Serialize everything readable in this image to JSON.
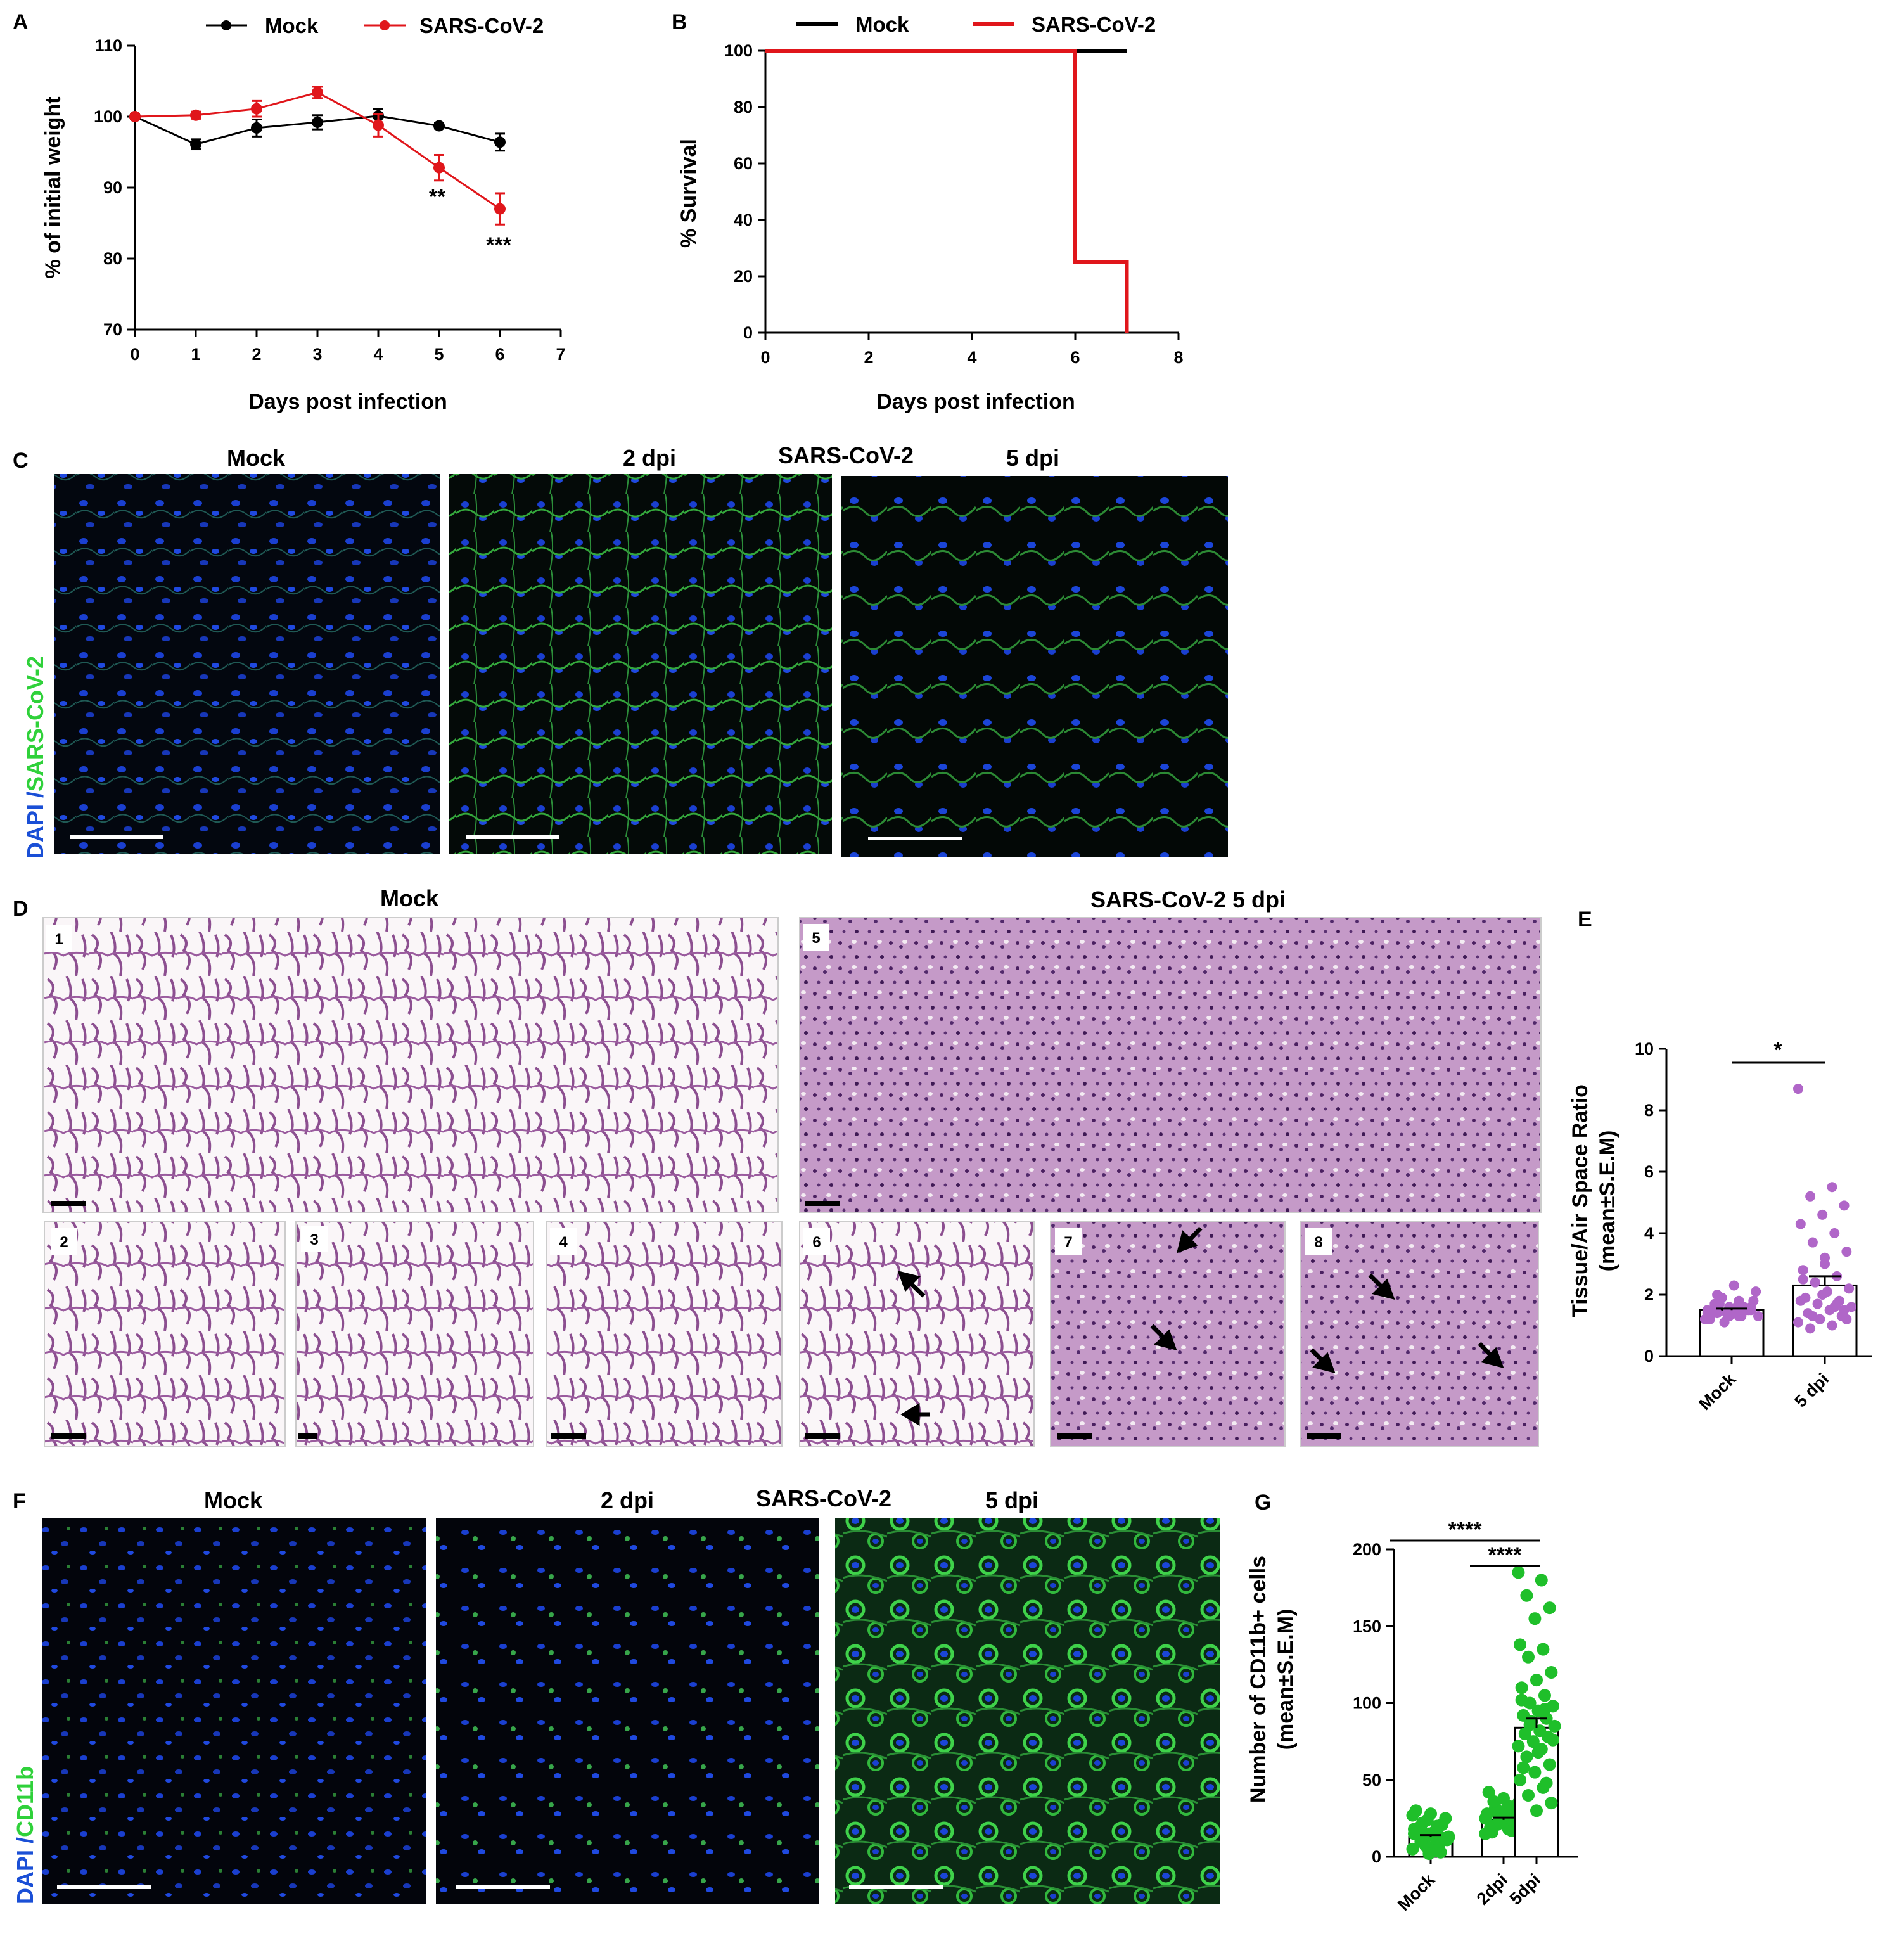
{
  "panel_labels": {
    "A": "A",
    "B": "B",
    "C": "C",
    "D": "D",
    "E": "E",
    "F": "F",
    "G": "G"
  },
  "colors": {
    "mock": "#000000",
    "sars": "#e0161b",
    "purple": "#b066c8",
    "green": "#1fbf2a",
    "dapi": "#1a4fd6",
    "viral": "#2fd13a",
    "he_bg": "#f2e6ef",
    "he_tissue": "#9a5b9e"
  },
  "panel_A": {
    "legend_mock": "Mock",
    "legend_sars": "SARS-CoV-2",
    "xlabel": "Days post infection",
    "ylabel": "% of initial weight",
    "xticks": [
      "0",
      "1",
      "2",
      "3",
      "4",
      "5",
      "6",
      "7"
    ],
    "yticks": [
      "70",
      "80",
      "90",
      "100",
      "110"
    ],
    "sig_5": "**",
    "sig_6": "***"
  },
  "panel_B": {
    "legend_mock": "Mock",
    "legend_sars": "SARS-CoV-2",
    "xlabel": "Days post infection",
    "ylabel": "% Survival",
    "xticks": [
      "0",
      "2",
      "4",
      "6",
      "8"
    ],
    "yticks": [
      "0",
      "20",
      "40",
      "60",
      "80",
      "100"
    ]
  },
  "panel_C": {
    "title_mock": "Mock",
    "title_2dpi": "2 dpi",
    "title_sars": "SARS-CoV-2",
    "title_5dpi": "5 dpi",
    "ylabel_dapi": "DAPI",
    "ylabel_sep": " /",
    "ylabel_stain": "SARS-CoV-2"
  },
  "panel_D": {
    "title_mock": "Mock",
    "title_sars": "SARS-CoV-2   5 dpi",
    "subpanels": [
      "1",
      "2",
      "3",
      "4",
      "5",
      "6",
      "7",
      "8"
    ]
  },
  "panel_E": {
    "ylabel1": "Tissue/Air Space Ratio",
    "ylabel2": "(mean±S.E.M)",
    "yticks": [
      "0",
      "2",
      "4",
      "6",
      "8",
      "10"
    ],
    "categories": [
      "Mock",
      "5 dpi"
    ],
    "sig": "*"
  },
  "panel_F": {
    "title_mock": "Mock",
    "title_2dpi": "2 dpi",
    "title_sars": "SARS-CoV-2",
    "title_5dpi": "5 dpi",
    "ylabel_dapi": "DAPI",
    "ylabel_sep": " /",
    "ylabel_stain": "CD11b"
  },
  "panel_G": {
    "ylabel1": "Number of CD11b+ cells",
    "ylabel2": "(mean±S.E.M)",
    "yticks": [
      "0",
      "50",
      "100",
      "150",
      "200"
    ],
    "categories": [
      "Mock",
      "2dpi",
      "5dpi"
    ],
    "sig1": "****",
    "sig2": "****"
  },
  "chart_data": [
    {
      "type": "line",
      "panel": "A",
      "x": [
        0,
        1,
        2,
        3,
        4,
        5,
        6
      ],
      "series": [
        {
          "name": "Mock",
          "values": [
            100,
            96.1,
            98.4,
            99.2,
            100.1,
            98.7,
            96.4
          ],
          "error": [
            0.3,
            0.7,
            1.2,
            1.0,
            1.0,
            0.4,
            1.2
          ]
        },
        {
          "name": "SARS-CoV-2",
          "values": [
            100,
            100.2,
            101.1,
            103.4,
            98.8,
            92.8,
            87.0
          ],
          "error": [
            0.3,
            0.5,
            1.1,
            0.8,
            1.6,
            1.8,
            2.2
          ]
        }
      ],
      "xlim": [
        0,
        7
      ],
      "ylim": [
        70,
        110
      ]
    },
    {
      "type": "line",
      "panel": "B",
      "step": true,
      "series": [
        {
          "name": "Mock",
          "x": [
            0,
            7
          ],
          "values": [
            100,
            100
          ]
        },
        {
          "name": "SARS-CoV-2",
          "x": [
            0,
            6,
            6,
            7,
            7
          ],
          "values": [
            100,
            100,
            25,
            25,
            0
          ]
        }
      ],
      "xlim": [
        0,
        8
      ],
      "ylim": [
        0,
        100
      ]
    },
    {
      "type": "bar",
      "panel": "E",
      "categories": [
        "Mock",
        "5 dpi"
      ],
      "values": [
        1.5,
        2.3
      ],
      "error": [
        0.05,
        0.3
      ],
      "ylim": [
        0,
        10
      ],
      "points": {
        "Mock": [
          1.2,
          1.3,
          1.4,
          1.5,
          1.6,
          1.4,
          1.3,
          1.7,
          1.8,
          1.5,
          1.2,
          1.6,
          1.9,
          2.1,
          2.3,
          1.4,
          1.5,
          1.1,
          1.3,
          1.6,
          1.7,
          1.5,
          1.4,
          1.2,
          1.8,
          2.0,
          1.6,
          1.3,
          1.5,
          1.4
        ],
        "5 dpi": [
          8.7,
          5.5,
          5.2,
          4.9,
          4.6,
          4.3,
          4.0,
          3.7,
          3.4,
          3.0,
          2.8,
          2.6,
          2.4,
          2.2,
          2.1,
          1.9,
          1.8,
          1.7,
          1.6,
          1.5,
          1.4,
          1.3,
          1.2,
          1.1,
          1.0,
          0.9,
          1.5,
          2.0,
          1.8,
          1.6,
          1.3,
          1.2,
          3.2,
          2.5,
          1.7
        ]
      }
    },
    {
      "type": "bar",
      "panel": "G",
      "categories": [
        "Mock",
        "2dpi",
        "5dpi"
      ],
      "values": [
        13,
        24,
        84
      ],
      "error": [
        1.2,
        1.5,
        6
      ],
      "ylim": [
        0,
        200
      ],
      "points": {
        "Mock": [
          5,
          8,
          10,
          12,
          15,
          18,
          20,
          22,
          25,
          28,
          30,
          6,
          9,
          11,
          14,
          17,
          3,
          7,
          13,
          16,
          19,
          21,
          24,
          27,
          4,
          10,
          12,
          2,
          15,
          18
        ],
        "2dpi": [
          15,
          18,
          20,
          22,
          25,
          28,
          30,
          32,
          35,
          38,
          42,
          17,
          21,
          24,
          27,
          19,
          23,
          26,
          29,
          31,
          16,
          20,
          22,
          25,
          33,
          36
        ],
        "5dpi": [
          185,
          180,
          170,
          162,
          155,
          138,
          135,
          130,
          120,
          115,
          110,
          105,
          100,
          98,
          95,
          92,
          90,
          88,
          85,
          82,
          80,
          78,
          75,
          72,
          70,
          65,
          60,
          55,
          50,
          45,
          40,
          35,
          30,
          102,
          96,
          86,
          76,
          68,
          58,
          48
        ]
      }
    }
  ]
}
